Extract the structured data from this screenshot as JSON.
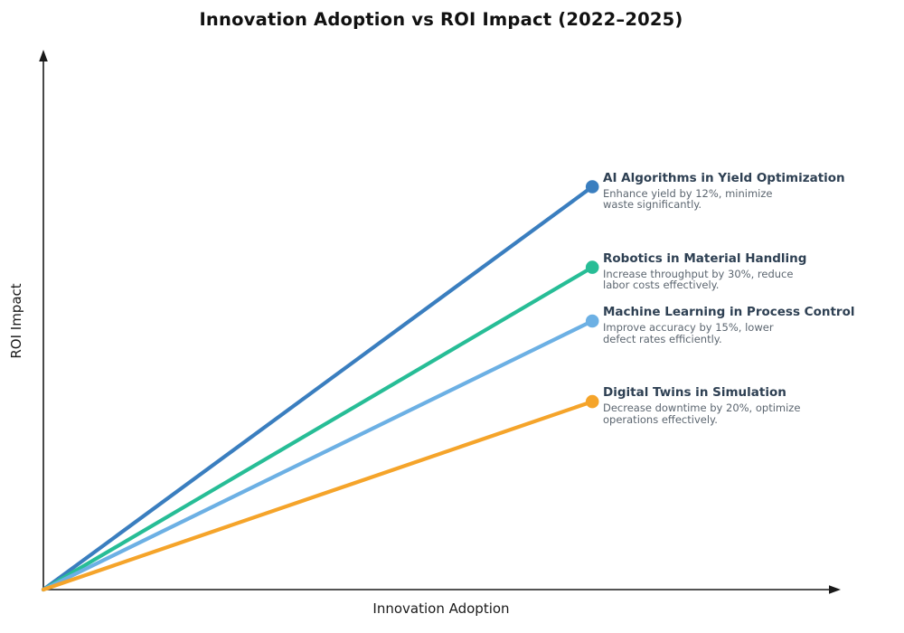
{
  "chart_data": {
    "type": "line",
    "title": "Innovation Adoption vs ROI Impact (2022–2025)",
    "xlabel": "Innovation Adoption",
    "ylabel": "ROI Impact",
    "axes": {
      "style": "arrowed",
      "color": "#1a1a1a",
      "ticks": "none",
      "grid": false,
      "x_range": [
        0,
        1
      ],
      "y_range": [
        0,
        1
      ]
    },
    "legend_position": "inline-right",
    "series": [
      {
        "name": "AI Algorithms in Yield Optimization",
        "description": "Enhance yield by 12%, minimize waste significantly.",
        "desc_lines": [
          "Enhance yield by 12%, minimize",
          "waste significantly."
        ],
        "color": "#3A7EBF",
        "start": {
          "x": 0.0,
          "y": 0.0
        },
        "end": {
          "x": 0.69,
          "y": 0.75
        }
      },
      {
        "name": "Robotics in Material Handling",
        "description": "Increase throughput by 30%, reduce labor costs effectively.",
        "desc_lines": [
          "Increase throughput by 30%, reduce",
          "labor costs effectively."
        ],
        "color": "#27BD96",
        "start": {
          "x": 0.0,
          "y": 0.0
        },
        "end": {
          "x": 0.69,
          "y": 0.6
        }
      },
      {
        "name": "Machine Learning in Process Control",
        "description": "Improve accuracy by 15%, lower defect rates efficiently.",
        "desc_lines": [
          "Improve accuracy by 15%, lower",
          "defect rates efficiently."
        ],
        "color": "#6CB0E4",
        "start": {
          "x": 0.0,
          "y": 0.0
        },
        "end": {
          "x": 0.69,
          "y": 0.5
        }
      },
      {
        "name": "Digital Twins in Simulation",
        "description": "Decrease downtime by 20%, optimize operations effectively.",
        "desc_lines": [
          "Decrease downtime by 20%, optimize",
          "operations effectively."
        ],
        "color": "#F5A42A",
        "start": {
          "x": 0.0,
          "y": 0.0
        },
        "end": {
          "x": 0.69,
          "y": 0.35
        }
      }
    ],
    "text_colors": {
      "title": "#111111",
      "series_heading": "#2e4053",
      "series_description": "#5c6670",
      "axis_label": "#1a1a1a"
    }
  }
}
